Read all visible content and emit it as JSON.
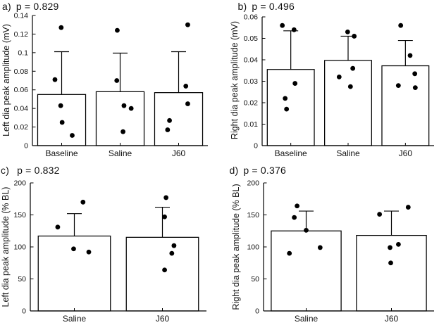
{
  "figure": {
    "background": "#ffffff",
    "ink_color": "#000000",
    "marker_color": "#000000",
    "bar_fill": "#ffffff"
  },
  "chart_data": [
    {
      "type": "bar",
      "panel_label": "a)",
      "p_text": "p = 0.829",
      "ylabel": "Left dia peak amplitude (mV)",
      "xlabel": "",
      "ylim": [
        0,
        0.14
      ],
      "ytick_vals": [
        0,
        0.02,
        0.04,
        0.06,
        0.08,
        0.1,
        0.12,
        0.14
      ],
      "ytick_labels": [
        "0",
        "0.02",
        "0.04",
        "0.06",
        "0.08",
        "0.1",
        "0.12",
        "0.14"
      ],
      "categories": [
        "Baseline",
        "Saline",
        "J60"
      ],
      "bar_values": [
        0.055,
        0.058,
        0.057
      ],
      "error_tops": [
        0.101,
        0.0995,
        0.101
      ],
      "grid": false,
      "legend": false,
      "points": [
        [
          {
            "dx": -0.01,
            "y": 0.127
          },
          {
            "dx": -0.14,
            "y": 0.071
          },
          {
            "dx": -0.02,
            "y": 0.043
          },
          {
            "dx": 0.01,
            "y": 0.025
          },
          {
            "dx": 0.22,
            "y": 0.011
          }
        ],
        [
          {
            "dx": -0.06,
            "y": 0.124
          },
          {
            "dx": -0.07,
            "y": 0.07
          },
          {
            "dx": 0.08,
            "y": 0.043
          },
          {
            "dx": 0.23,
            "y": 0.04
          },
          {
            "dx": 0.06,
            "y": 0.015
          }
        ],
        [
          {
            "dx": 0.19,
            "y": 0.13
          },
          {
            "dx": 0.15,
            "y": 0.064
          },
          {
            "dx": 0.19,
            "y": 0.045
          },
          {
            "dx": -0.19,
            "y": 0.027
          },
          {
            "dx": -0.23,
            "y": 0.017
          }
        ]
      ]
    },
    {
      "type": "bar",
      "panel_label": "b)",
      "p_text": "p = 0.496",
      "ylabel": "Right dia peak amplitude (mV)",
      "xlabel": "",
      "ylim": [
        0,
        0.06
      ],
      "ytick_vals": [
        0,
        0.01,
        0.02,
        0.03,
        0.04,
        0.05,
        0.06
      ],
      "ytick_labels": [
        "0",
        "0.01",
        "0.02",
        "0.03",
        "0.04",
        "0.05",
        "0.06"
      ],
      "categories": [
        "Baseline",
        "Saline",
        "J60"
      ],
      "bar_values": [
        0.0355,
        0.0397,
        0.0372
      ],
      "error_tops": [
        0.0535,
        0.051,
        0.049
      ],
      "grid": false,
      "legend": false,
      "points": [
        [
          {
            "dx": -0.18,
            "y": 0.056
          },
          {
            "dx": 0.07,
            "y": 0.054
          },
          {
            "dx": 0.09,
            "y": 0.029
          },
          {
            "dx": -0.12,
            "y": 0.022
          },
          {
            "dx": -0.09,
            "y": 0.017
          }
        ],
        [
          {
            "dx": -0.01,
            "y": 0.053
          },
          {
            "dx": 0.13,
            "y": 0.051
          },
          {
            "dx": 0.1,
            "y": 0.036
          },
          {
            "dx": -0.19,
            "y": 0.032
          },
          {
            "dx": 0.05,
            "y": 0.0275
          }
        ],
        [
          {
            "dx": -0.1,
            "y": 0.056
          },
          {
            "dx": 0.1,
            "y": 0.042
          },
          {
            "dx": 0.2,
            "y": 0.0335
          },
          {
            "dx": -0.15,
            "y": 0.028
          },
          {
            "dx": 0.21,
            "y": 0.027
          }
        ]
      ]
    },
    {
      "type": "bar",
      "panel_label": "c)",
      "p_text": "p = 0.832",
      "ylabel": "Left dia peak amplitude (% BL)",
      "xlabel": "",
      "ylim": [
        0,
        200
      ],
      "ytick_vals": [
        0,
        50,
        100,
        150,
        200
      ],
      "ytick_labels": [
        "0",
        "50",
        "100",
        "150",
        "200"
      ],
      "categories": [
        "Saline",
        "J60"
      ],
      "bar_values": [
        117,
        115
      ],
      "error_tops": [
        152,
        162
      ],
      "grid": false,
      "legend": false,
      "points": [
        [
          {
            "dx": 0.12,
            "y": 170
          },
          {
            "dx": -0.23,
            "y": 131
          },
          {
            "dx": -0.01,
            "y": 97
          },
          {
            "dx": 0.2,
            "y": 92
          }
        ],
        [
          {
            "dx": 0.05,
            "y": 177
          },
          {
            "dx": 0.03,
            "y": 147
          },
          {
            "dx": 0.16,
            "y": 102
          },
          {
            "dx": 0.13,
            "y": 90
          },
          {
            "dx": 0.03,
            "y": 64
          }
        ]
      ]
    },
    {
      "type": "bar",
      "panel_label": "d)",
      "p_text": "p = 0.376",
      "ylabel": "Right dia peak amplitude (% BL)",
      "xlabel": "",
      "ylim": [
        0,
        200
      ],
      "ytick_vals": [
        0,
        50,
        100,
        150,
        200
      ],
      "ytick_labels": [
        "0",
        "50",
        "100",
        "150",
        "200"
      ],
      "categories": [
        "Saline",
        "J60"
      ],
      "bar_values": [
        125,
        118
      ],
      "error_tops": [
        156,
        156
      ],
      "grid": false,
      "legend": false,
      "points": [
        [
          {
            "dx": -0.13,
            "y": 164
          },
          {
            "dx": -0.17,
            "y": 146
          },
          {
            "dx": 0,
            "y": 126
          },
          {
            "dx": 0.2,
            "y": 99
          },
          {
            "dx": -0.24,
            "y": 90
          }
        ],
        [
          {
            "dx": 0.24,
            "y": 162
          },
          {
            "dx": -0.17,
            "y": 151
          },
          {
            "dx": 0.1,
            "y": 104
          },
          {
            "dx": -0.02,
            "y": 99
          },
          {
            "dx": -0.01,
            "y": 75
          }
        ]
      ]
    }
  ]
}
